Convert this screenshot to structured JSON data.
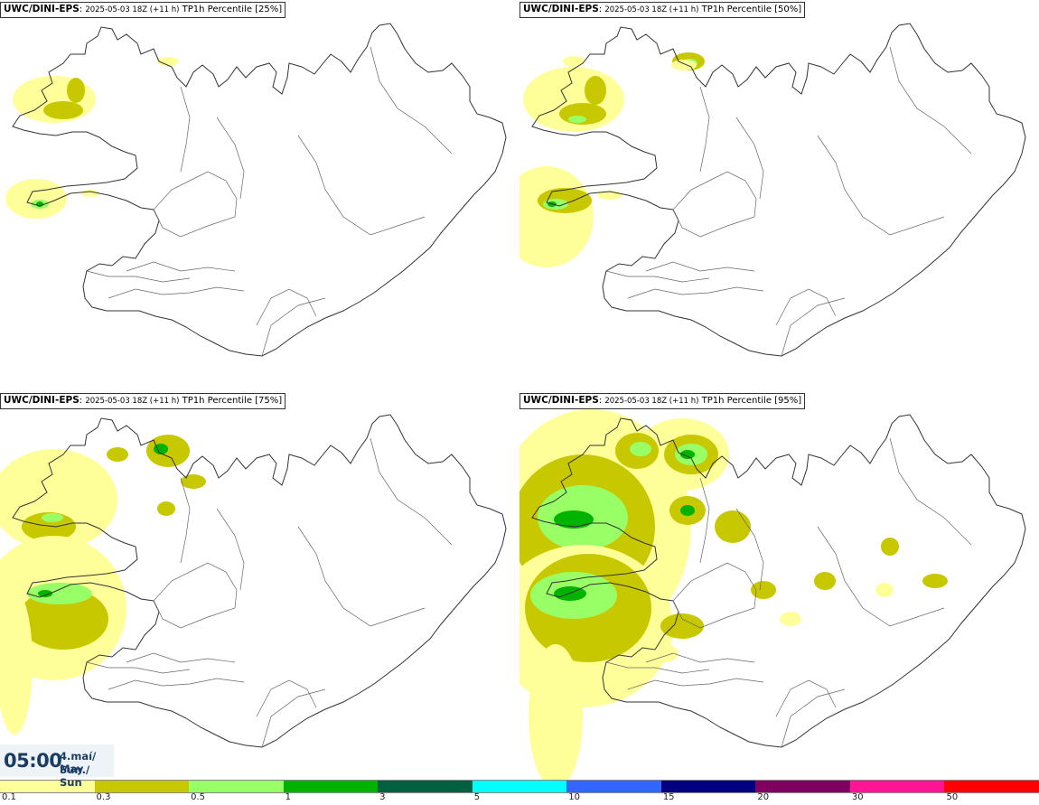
{
  "panels": [
    {
      "model": "UWC/DINI-EPS",
      "run": "2025-05-03 18Z (+11 h)",
      "product": "TP1h Percentile [25%]",
      "intensity": 1
    },
    {
      "model": "UWC/DINI-EPS",
      "run": "2025-05-03 18Z (+11 h)",
      "product": "TP1h Percentile [50%]",
      "intensity": 2
    },
    {
      "model": "UWC/DINI-EPS",
      "run": "2025-05-03 18Z (+11 h)",
      "product": "TP1h Percentile [75%]",
      "intensity": 3
    },
    {
      "model": "UWC/DINI-EPS",
      "run": "2025-05-03 18Z (+11 h)",
      "product": "TP1h Percentile [95%]",
      "intensity": 4
    }
  ],
  "time": {
    "clock": "05:00",
    "date_line1": "4.maí/ May",
    "date_line2": "Sun./ Sun"
  },
  "legend": {
    "colors": [
      "#ffff99",
      "#c8c800",
      "#99ff66",
      "#00b300",
      "#006040",
      "#00ffff",
      "#3366ff",
      "#000080",
      "#800060",
      "#ff1493",
      "#ff0000"
    ],
    "ticks": [
      "0.1",
      "0.3",
      "0.5",
      "1",
      "3",
      "5",
      "10",
      "15",
      "20",
      "30",
      "50"
    ]
  }
}
